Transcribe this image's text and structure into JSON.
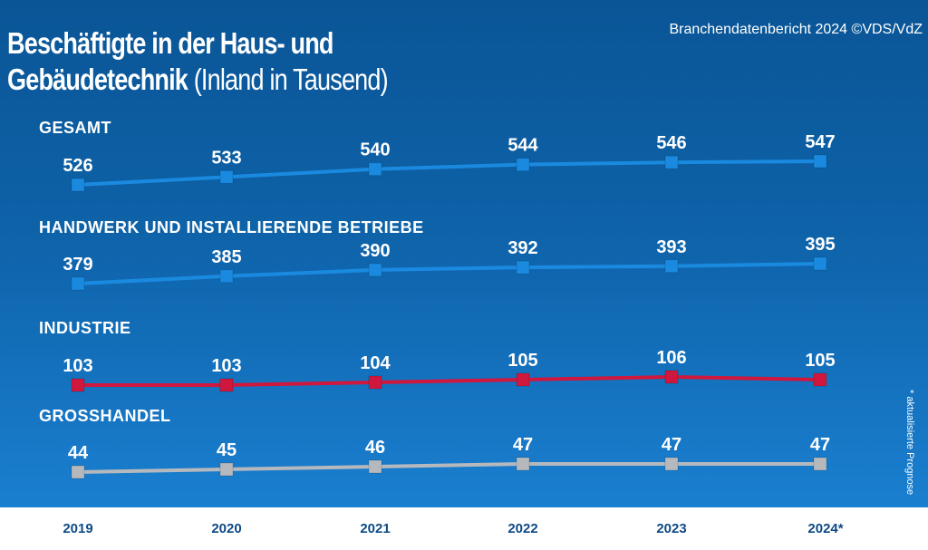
{
  "title_bold": "Beschäftigte in der Haus- und Gebäudetechnik",
  "title_line1": "Beschäftigte in der Haus- und",
  "title_line2_bold": "Gebäudetechnik",
  "title_line2_light": "(Inland in Tausend)",
  "source": "Branchendatenbericht 2024 ©VDS/VdZ",
  "footnote": "* aktualisierte Prognose",
  "chart_data": {
    "type": "line",
    "categories": [
      "2019",
      "2020",
      "2021",
      "2022",
      "2023",
      "2024*"
    ],
    "series": [
      {
        "name": "GESAMT",
        "values": [
          526,
          533,
          540,
          544,
          546,
          547
        ],
        "color": "#1a8ae0"
      },
      {
        "name": "HANDWERK UND INSTALLIERENDE BETRIEBE",
        "values": [
          379,
          385,
          390,
          392,
          393,
          395
        ],
        "color": "#1a8ae0"
      },
      {
        "name": "INDUSTRIE",
        "values": [
          103,
          103,
          104,
          105,
          106,
          105
        ],
        "color": "#d0173d"
      },
      {
        "name": "GROSSHANDEL",
        "values": [
          44,
          45,
          46,
          47,
          47,
          47
        ],
        "color": "#b5b9be"
      }
    ],
    "grid": false,
    "background_color": "#0e62a8"
  }
}
